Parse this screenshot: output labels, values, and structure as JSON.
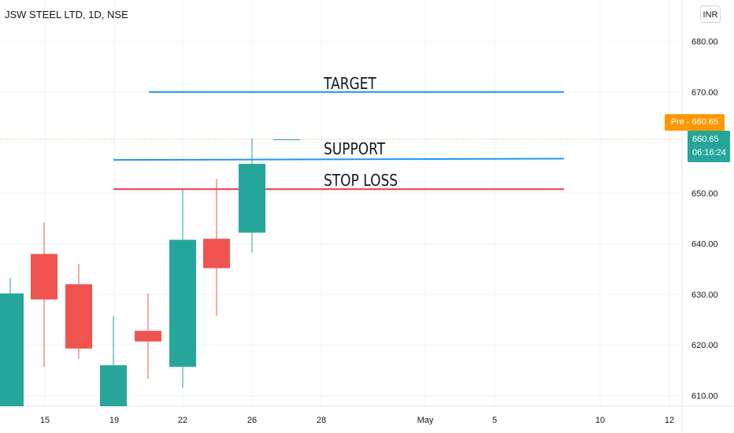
{
  "header": {
    "title": "JSW STEEL LTD, 1D, NSE",
    "currency_label": "INR"
  },
  "annotations": {
    "target_label": "TARGET",
    "support_label": "SUPPORT",
    "stoploss_label": "STOP LOSS"
  },
  "price_badges": {
    "pre_label": "Pre",
    "pre_price": "660.65",
    "last_price": "660.65",
    "countdown": "06:16:24"
  },
  "colors": {
    "up": "#26a69a",
    "down": "#ef5350",
    "target_line": "#2196f3",
    "support_line": "#2196f3",
    "stoploss_line": "#f23645",
    "pre_badge": "#ff9800"
  },
  "chart_data": {
    "type": "candlestick",
    "title": "JSW STEEL LTD, 1D, NSE",
    "y_axis": {
      "ticks": [
        "610.00",
        "620.00",
        "630.00",
        "640.00",
        "650.00",
        "660.00",
        "670.00",
        "680.00"
      ],
      "range": [
        607,
        687
      ]
    },
    "x_axis": {
      "tick_labels": [
        "15",
        "19",
        "22",
        "26",
        "28",
        "May",
        "5",
        "10",
        "12"
      ]
    },
    "candles": [
      {
        "date": "Apr 13",
        "open": 607,
        "high": 633.2,
        "low": 607,
        "close": 630.2
      },
      {
        "date": "Apr 15",
        "open": 638,
        "high": 644.2,
        "low": 615.7,
        "close": 629
      },
      {
        "date": "Apr 18",
        "open": 632,
        "high": 636,
        "low": 617.3,
        "close": 619.3
      },
      {
        "date": "Apr 19",
        "open": 607,
        "high": 625.7,
        "low": 607,
        "close": 616
      },
      {
        "date": "Apr 20",
        "open": 622.8,
        "high": 630.2,
        "low": 613.3,
        "close": 620.7
      },
      {
        "date": "Apr 22",
        "open": 615.7,
        "high": 650.8,
        "low": 611.5,
        "close": 640.8
      },
      {
        "date": "Apr 25",
        "open": 641,
        "high": 652.8,
        "low": 625.8,
        "close": 635.2
      },
      {
        "date": "Apr 26",
        "open": 642.2,
        "high": 660.8,
        "low": 638.3,
        "close": 655.8
      },
      {
        "date": "Apr 27",
        "open": 660.65,
        "high": 660.65,
        "low": 660.65,
        "close": 660.65
      }
    ],
    "levels": [
      {
        "name": "TARGET",
        "value": 670
      },
      {
        "name": "SUPPORT",
        "value": 656.7
      },
      {
        "name": "STOP LOSS",
        "value": 650.8
      }
    ],
    "last_price": 660.65,
    "grid": true
  }
}
